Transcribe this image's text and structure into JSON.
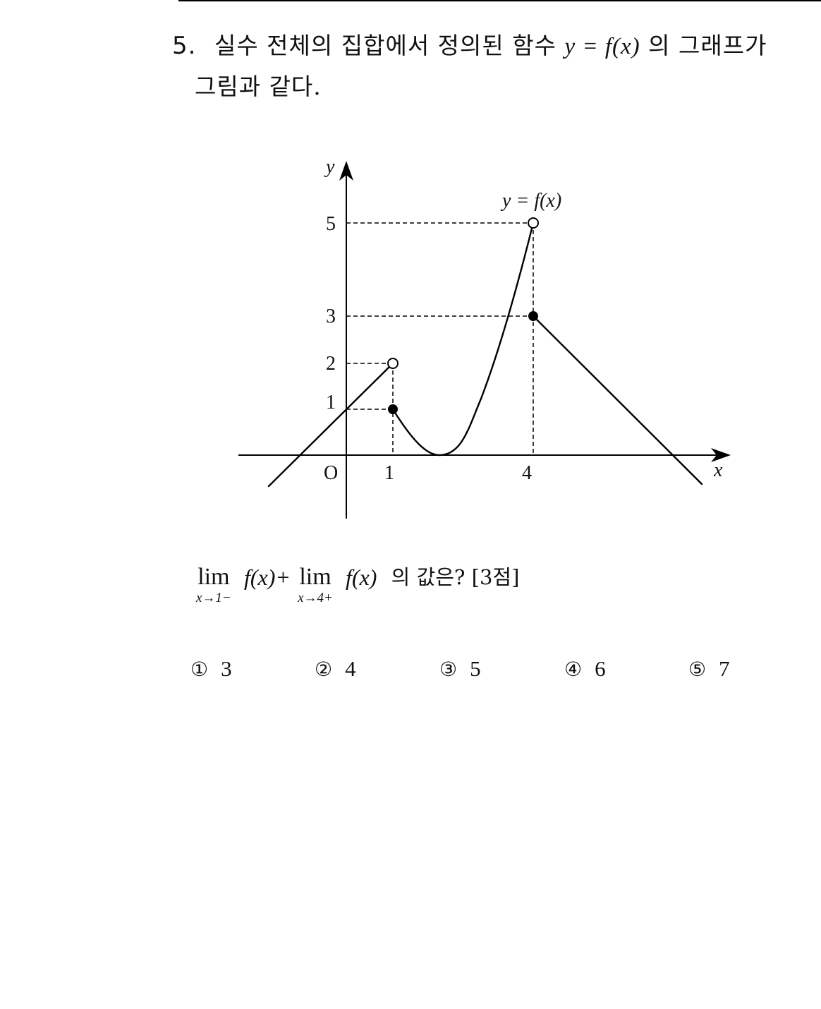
{
  "question": {
    "number": "5.",
    "line1_text": "실수 전체의 집합에서 정의된 함수",
    "line1_math": "y = f(x)",
    "line1_tail": "의 그래프가",
    "line2": "그림과 같다."
  },
  "graph": {
    "curve_label": "y = f(x)",
    "x_axis_label": "x",
    "y_axis_label": "y",
    "origin_label": "O",
    "x_ticks": [
      "1",
      "4"
    ],
    "y_ticks": [
      "1",
      "2",
      "3",
      "5"
    ],
    "points": {
      "open": [
        [
          1,
          2
        ],
        [
          4,
          5
        ]
      ],
      "closed": [
        [
          1,
          1
        ],
        [
          4,
          3
        ]
      ]
    }
  },
  "expression": {
    "lim1": "lim",
    "sub1": "x→1−",
    "term1": "f(x)+",
    "lim2": "lim",
    "sub2": "x→4+",
    "term2": "f(x)",
    "tail": "의 값은? [3점]"
  },
  "choices": [
    {
      "mark": "①",
      "value": "3"
    },
    {
      "mark": "②",
      "value": "4"
    },
    {
      "mark": "③",
      "value": "5"
    },
    {
      "mark": "④",
      "value": "6"
    },
    {
      "mark": "⑤",
      "value": "7"
    }
  ]
}
